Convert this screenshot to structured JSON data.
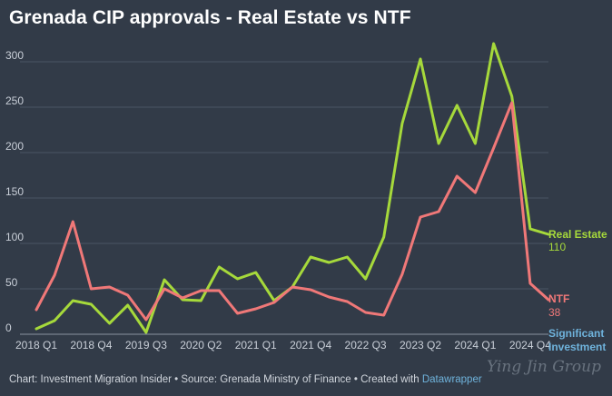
{
  "chart_data": {
    "type": "line",
    "title": "Grenada CIP approvals - Real Estate vs NTF",
    "xlabel": "",
    "ylabel": "",
    "ylim": [
      0,
      320
    ],
    "yticks": [
      0,
      50,
      100,
      150,
      200,
      250,
      300
    ],
    "grid": true,
    "x_tick_labels": [
      "2018 Q1",
      "2018 Q4",
      "2019 Q3",
      "2020 Q2",
      "2021 Q1",
      "2021 Q4",
      "2022 Q3",
      "2023 Q2",
      "2024 Q1",
      "2024 Q4"
    ],
    "series": [
      {
        "name": "Real Estate",
        "color": "#a6d93b",
        "end_label": "110",
        "values": [
          6,
          15,
          37,
          33,
          12,
          32,
          2,
          60,
          38,
          37,
          74,
          61,
          68,
          37,
          52,
          85,
          79,
          85,
          61,
          107,
          232,
          303,
          210,
          252,
          210,
          320,
          262,
          116,
          110
        ]
      },
      {
        "name": "NTF",
        "color": "#f07878",
        "end_label": "38",
        "values": [
          27,
          65,
          124,
          50,
          52,
          43,
          16,
          50,
          40,
          48,
          48,
          23,
          28,
          35,
          52,
          49,
          41,
          36,
          24,
          21,
          66,
          129,
          135,
          174,
          156,
          205,
          255,
          56,
          38
        ]
      },
      {
        "name": "Significant Investment",
        "name_lines": [
          "Significant",
          "Investment"
        ],
        "color": "#6fb3dc",
        "end_label": "",
        "values": []
      }
    ]
  },
  "footer": {
    "text": "Chart: Investment Migration Insider • Source: Grenada Ministry of Finance • Created with ",
    "link": "Datawrapper"
  },
  "watermark": "Ying Jin Group"
}
